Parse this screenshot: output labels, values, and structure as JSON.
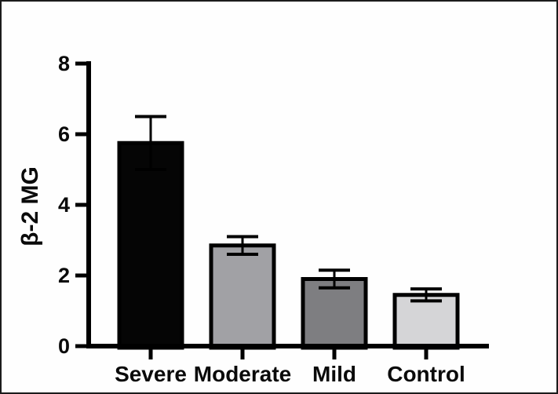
{
  "frame": {
    "border_color": "#1b1b1b",
    "background": "#fefefe"
  },
  "chart_data": {
    "type": "bar",
    "title": "",
    "xlabel": "",
    "ylabel": "β-2 MG",
    "categories": [
      "Severe",
      "Moderate",
      "Mild",
      "Control"
    ],
    "values": [
      5.75,
      2.85,
      1.9,
      1.45
    ],
    "errors": [
      0.75,
      0.25,
      0.25,
      0.17
    ],
    "error_bars": "both-directions-with-caps",
    "bar_colors": [
      "#050505",
      "#a1a1a5",
      "#7e7e81",
      "#d5d5d7"
    ],
    "bar_border_color": "#000000",
    "axis_color": "#000000",
    "text_color": "#0a0a0a",
    "ylim": [
      0,
      8
    ],
    "yticks": [
      0,
      2,
      4,
      6,
      8
    ],
    "grid": false,
    "legend": "none"
  }
}
